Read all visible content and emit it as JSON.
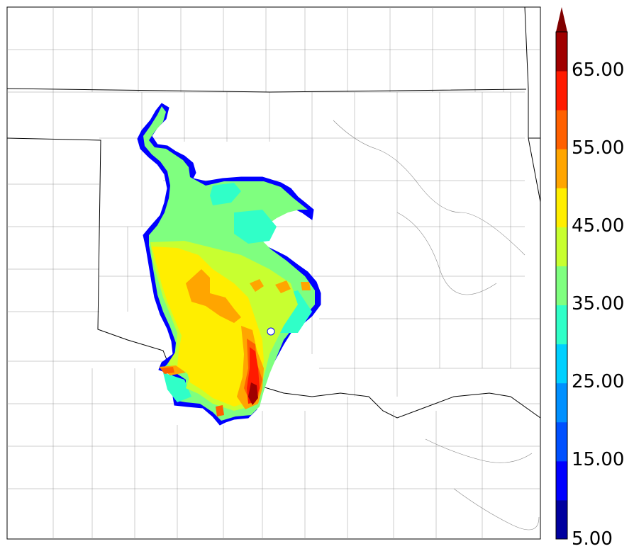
{
  "colorbar": {
    "min_label": "5.00",
    "tick_labels": [
      "5.00",
      "15.00",
      "25.00",
      "35.00",
      "45.00",
      "55.00",
      "65.00"
    ],
    "levels": [
      5,
      10,
      15,
      20,
      25,
      30,
      35,
      40,
      45,
      50,
      55,
      60,
      65,
      70
    ],
    "colors": [
      "#00009f",
      "#0000ff",
      "#0050ff",
      "#0090ff",
      "#00d0ff",
      "#30ffc8",
      "#7fff7f",
      "#c8ff30",
      "#ffee00",
      "#ffa500",
      "#ff6000",
      "#ff1a00",
      "#a00000"
    ],
    "extend_color": "#800000",
    "extend": "max"
  },
  "map": {
    "field_palette": {
      "outline": "#0000ff",
      "green": "#7fff7f",
      "cyan": "#30ffc8",
      "yellow": "#ffee00",
      "lime": "#c8ff30",
      "orange": "#ffa500",
      "red_orange": "#ff6000",
      "red": "#ff1a00",
      "dark_red": "#a00000"
    },
    "border_color": "#000000",
    "county_color": "#999999"
  }
}
